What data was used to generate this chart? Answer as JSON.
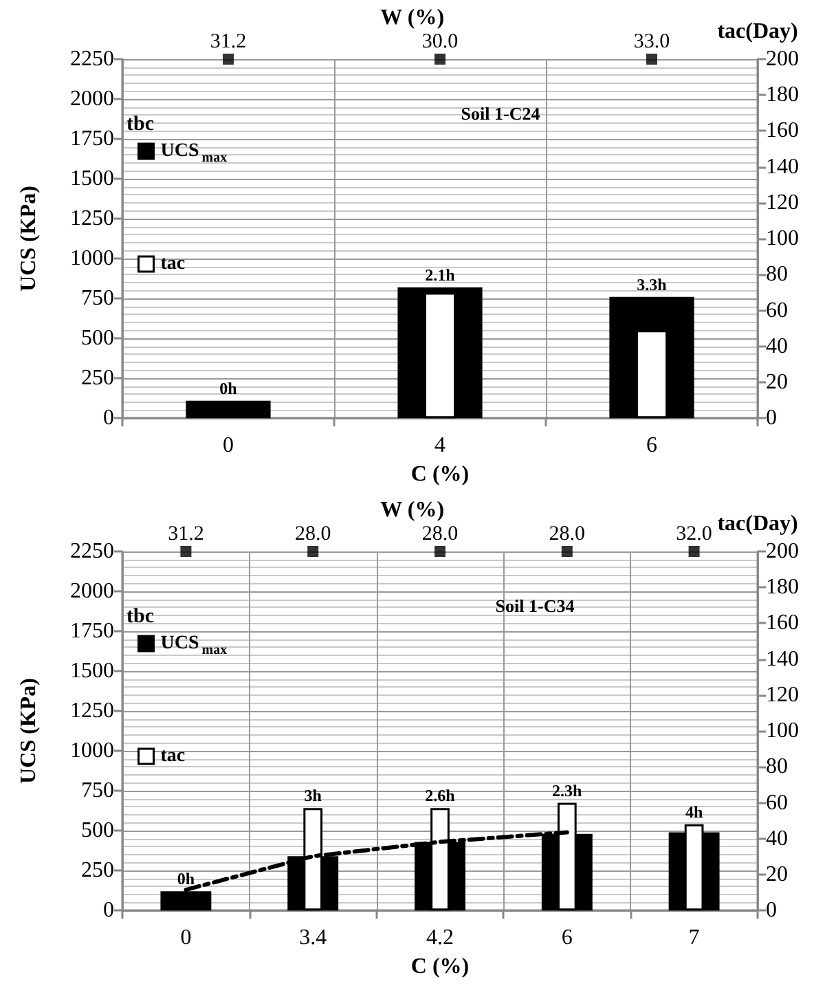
{
  "chart_data": [
    {
      "type": "bar",
      "title": "Soil 1-C24",
      "xlabel": "C (%)",
      "ylabel": "UCS (KPa)",
      "y2label": "tac(Day)",
      "x2label": "W (%)",
      "legend_title": "tbc",
      "legend": "top left",
      "grid": true,
      "categories": [
        "0",
        "4",
        "6"
      ],
      "series": [
        {
          "name": "UCS$_{max}$",
          "color": "#000000",
          "values": [
            110,
            820,
            760
          ]
        },
        {
          "name": "tac",
          "axis": "y2",
          "color": "#ffffff",
          "values": [
            null,
            70,
            49
          ]
        },
        {
          "type": "scatter",
          "color": "#000000",
          "marker": "square",
          "values": [
            2250,
            2250,
            2250
          ]
        }
      ],
      "annotations": [
        {
          "text": "31.2",
          "x": "0",
          "y": 2250
        },
        {
          "text": "30.0",
          "x": "4",
          "y": 2250
        },
        {
          "text": "33.0",
          "x": "6",
          "y": 2250
        },
        {
          "text": "0h",
          "x": "0",
          "y": 110
        },
        {
          "text": "2.1h",
          "x": "4",
          "y": 820
        },
        {
          "text": "3.3h",
          "x": "6",
          "y": 760
        }
      ],
      "ylim": [
        0,
        2250
      ],
      "yticks": [
        0,
        250,
        500,
        750,
        1000,
        1250,
        1500,
        1750,
        2000,
        2250
      ],
      "y2lim": [
        0,
        200
      ],
      "y2ticks": [
        0,
        20,
        40,
        60,
        80,
        100,
        120,
        140,
        160,
        180,
        200
      ]
    },
    {
      "type": "bar",
      "title": "Soil 1-C34",
      "xlabel": "C (%)",
      "ylabel": "UCS (KPa)",
      "y2label": "tac(Day)",
      "x2label": "W (%)",
      "legend_title": "tbc",
      "legend": "top left",
      "grid": true,
      "categories": [
        "0",
        "3.4",
        "4.2",
        "6",
        "7"
      ],
      "series": [
        {
          "name": "UCS$_{max}$",
          "color": "#000000",
          "values": [
            120,
            340,
            430,
            480,
            490
          ]
        },
        {
          "name": "tac",
          "axis": "y2",
          "color": "#ffffff",
          "values": [
            null,
            57,
            57,
            60,
            48
          ]
        },
        {
          "type": "line",
          "color": "#000000",
          "line_style": "dashed",
          "marker": "none",
          "values": [
            130,
            340,
            430,
            490,
            null
          ]
        },
        {
          "type": "scatter",
          "color": "#000000",
          "marker": "square",
          "values": [
            2250,
            2250,
            2250,
            2250,
            2250
          ]
        }
      ],
      "annotations": [
        {
          "text": "31.2",
          "x": "0",
          "y": 2250
        },
        {
          "text": "28.0",
          "x": "3.4",
          "y": 2250
        },
        {
          "text": "28.0",
          "x": "4.2",
          "y": 2250
        },
        {
          "text": "28.0",
          "x": "6",
          "y": 2250
        },
        {
          "text": "32.0",
          "x": "7",
          "y": 2250
        },
        {
          "text": "0h",
          "x": "0",
          "y": 120
        },
        {
          "text": "3h",
          "x": "3.4",
          "y": 640
        },
        {
          "text": "2.6h",
          "x": "4.2",
          "y": 640
        },
        {
          "text": "2.3h",
          "x": "6",
          "y": 675
        },
        {
          "text": "4h",
          "x": "7",
          "y": 540
        }
      ],
      "ylim": [
        0,
        2250
      ],
      "yticks": [
        0,
        250,
        500,
        750,
        1000,
        1250,
        1500,
        1750,
        2000,
        2250
      ],
      "y2lim": [
        0,
        200
      ],
      "y2ticks": [
        0,
        20,
        40,
        60,
        80,
        100,
        120,
        140,
        160,
        180,
        200
      ]
    }
  ]
}
